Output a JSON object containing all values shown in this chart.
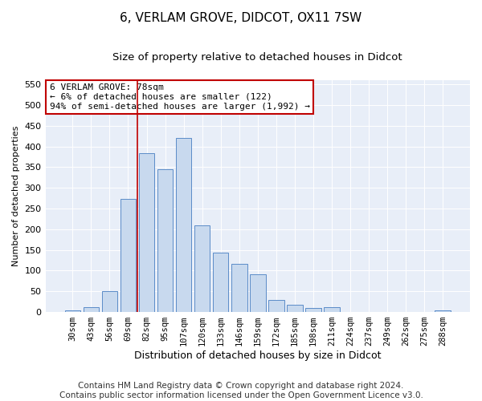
{
  "title": "6, VERLAM GROVE, DIDCOT, OX11 7SW",
  "subtitle": "Size of property relative to detached houses in Didcot",
  "xlabel": "Distribution of detached houses by size in Didcot",
  "ylabel": "Number of detached properties",
  "categories": [
    "30sqm",
    "43sqm",
    "56sqm",
    "69sqm",
    "82sqm",
    "95sqm",
    "107sqm",
    "120sqm",
    "133sqm",
    "146sqm",
    "159sqm",
    "172sqm",
    "185sqm",
    "198sqm",
    "211sqm",
    "224sqm",
    "237sqm",
    "249sqm",
    "262sqm",
    "275sqm",
    "288sqm"
  ],
  "values": [
    5,
    12,
    50,
    273,
    383,
    345,
    420,
    210,
    143,
    116,
    92,
    30,
    18,
    10,
    12,
    0,
    0,
    0,
    0,
    0,
    4
  ],
  "bar_color": "#c8d9ee",
  "bar_edge_color": "#5b8cc8",
  "vline_x": 3.5,
  "vline_color": "#c00000",
  "annotation_text": "6 VERLAM GROVE: 78sqm\n← 6% of detached houses are smaller (122)\n94% of semi-detached houses are larger (1,992) →",
  "annotation_box_color": "#ffffff",
  "annotation_box_edge_color": "#c00000",
  "ylim": [
    0,
    560
  ],
  "yticks": [
    0,
    50,
    100,
    150,
    200,
    250,
    300,
    350,
    400,
    450,
    500,
    550
  ],
  "bg_color": "#e8eef8",
  "footer_line1": "Contains HM Land Registry data © Crown copyright and database right 2024.",
  "footer_line2": "Contains public sector information licensed under the Open Government Licence v3.0.",
  "title_fontsize": 11,
  "subtitle_fontsize": 9.5,
  "annotation_fontsize": 8,
  "footer_fontsize": 7.5,
  "ylabel_fontsize": 8,
  "xlabel_fontsize": 9
}
